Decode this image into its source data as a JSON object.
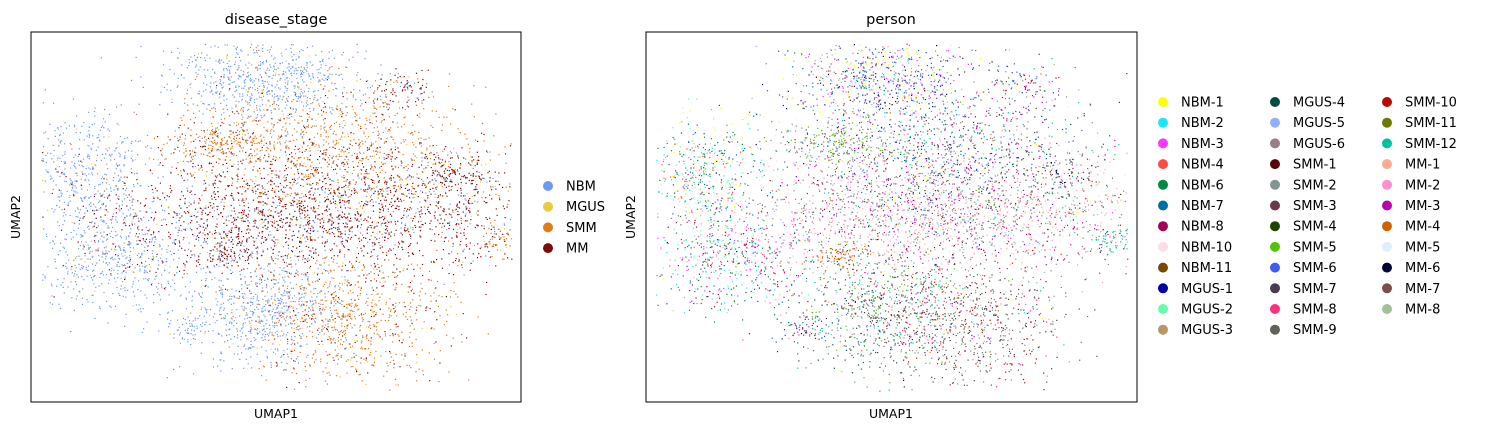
{
  "figure": {
    "panels": [
      {
        "title": "disease_stage",
        "xlabel": "UMAP1",
        "ylabel": "UMAP2"
      },
      {
        "title": "person",
        "xlabel": "UMAP1",
        "ylabel": "UMAP2"
      }
    ]
  },
  "chart_data": [
    {
      "type": "scatter",
      "title": "disease_stage",
      "xlabel": "UMAP1",
      "ylabel": "UMAP2",
      "ticks": "none",
      "grid": false,
      "legend_position": "right",
      "series": [
        {
          "name": "NBM",
          "color": "#6c9af0"
        },
        {
          "name": "MGUS",
          "color": "#ecc942"
        },
        {
          "name": "SMM",
          "color": "#e07b17"
        },
        {
          "name": "MM",
          "color": "#7f0d0d"
        }
      ]
    },
    {
      "type": "scatter",
      "title": "person",
      "xlabel": "UMAP1",
      "ylabel": "UMAP2",
      "ticks": "none",
      "grid": false,
      "legend_position": "right",
      "legend_columns": 3,
      "series": [
        {
          "name": "NBM-1",
          "color": "#ffff00"
        },
        {
          "name": "NBM-2",
          "color": "#1ce6ff"
        },
        {
          "name": "NBM-3",
          "color": "#ff34ff"
        },
        {
          "name": "NBM-4",
          "color": "#ff4a46"
        },
        {
          "name": "NBM-6",
          "color": "#008941"
        },
        {
          "name": "NBM-7",
          "color": "#006fa6"
        },
        {
          "name": "NBM-8",
          "color": "#a30059"
        },
        {
          "name": "NBM-10",
          "color": "#ffdbe5"
        },
        {
          "name": "NBM-11",
          "color": "#7a4900"
        },
        {
          "name": "MGUS-1",
          "color": "#0000a6"
        },
        {
          "name": "MGUS-2",
          "color": "#63ffac"
        },
        {
          "name": "MGUS-3",
          "color": "#b79762"
        },
        {
          "name": "MGUS-4",
          "color": "#004d43"
        },
        {
          "name": "MGUS-5",
          "color": "#8fb0ff"
        },
        {
          "name": "MGUS-6",
          "color": "#997d87"
        },
        {
          "name": "SMM-1",
          "color": "#5a0007"
        },
        {
          "name": "SMM-2",
          "color": "#809693"
        },
        {
          "name": "SMM-3",
          "color": "#6a3a4c"
        },
        {
          "name": "SMM-4",
          "color": "#1b4400"
        },
        {
          "name": "SMM-5",
          "color": "#4fc601"
        },
        {
          "name": "SMM-6",
          "color": "#3b5dff"
        },
        {
          "name": "SMM-7",
          "color": "#4a3b53"
        },
        {
          "name": "SMM-8",
          "color": "#ff2f80"
        },
        {
          "name": "SMM-9",
          "color": "#61615a"
        },
        {
          "name": "SMM-10",
          "color": "#ba0900"
        },
        {
          "name": "SMM-11",
          "color": "#6b7900"
        },
        {
          "name": "SMM-12",
          "color": "#00c2a0"
        },
        {
          "name": "MM-1",
          "color": "#ffaa92"
        },
        {
          "name": "MM-2",
          "color": "#ff90c9"
        },
        {
          "name": "MM-3",
          "color": "#b903aa"
        },
        {
          "name": "MM-4",
          "color": "#d16100"
        },
        {
          "name": "MM-5",
          "color": "#ddefff"
        },
        {
          "name": "MM-6",
          "color": "#000035"
        },
        {
          "name": "MM-7",
          "color": "#7b4f4b"
        },
        {
          "name": "MM-8",
          "color": "#a1c299"
        }
      ]
    }
  ]
}
